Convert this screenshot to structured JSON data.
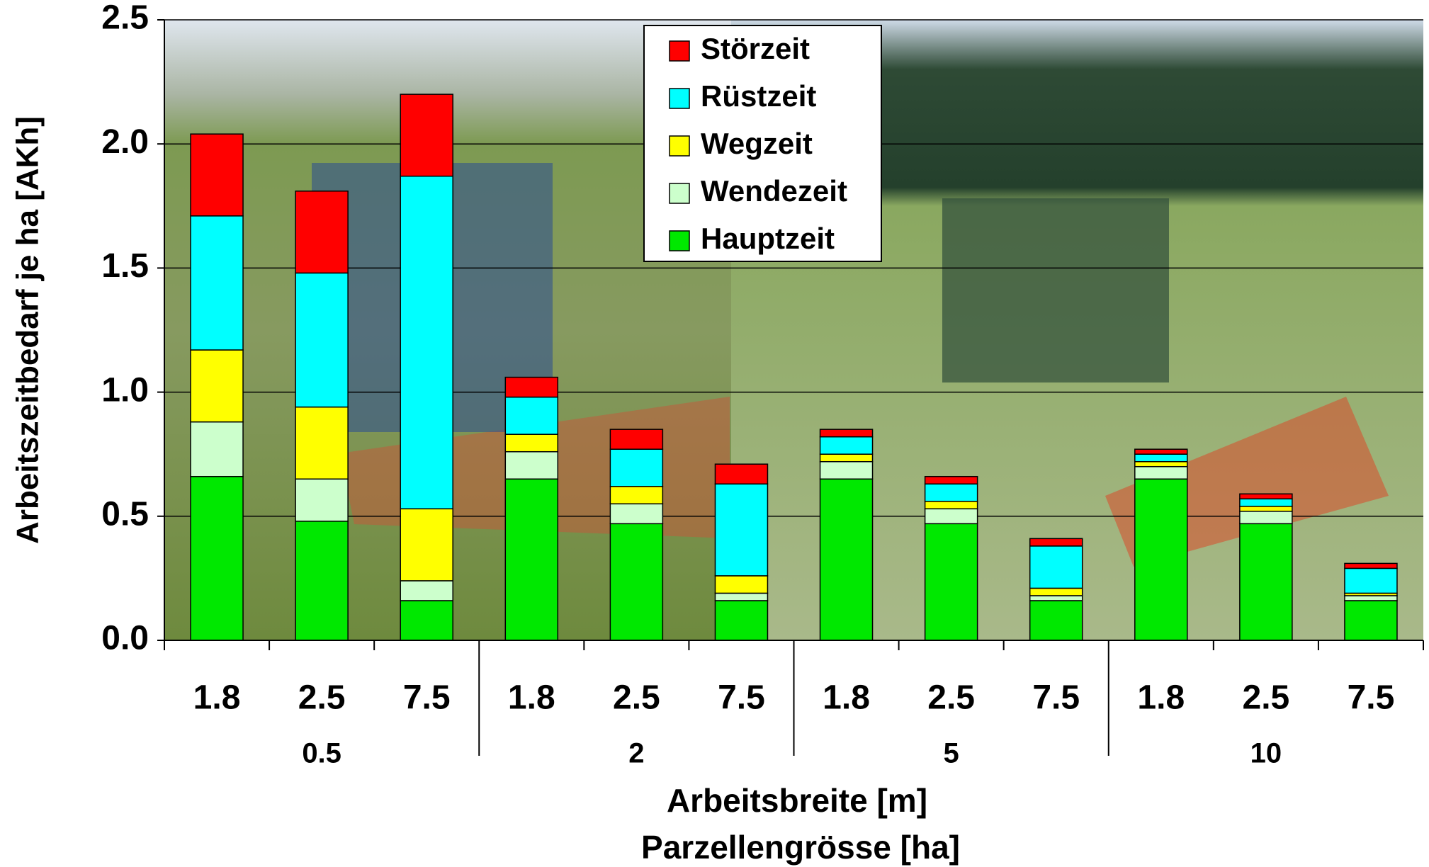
{
  "chart_data": {
    "type": "stacked_bar",
    "xlabel": "Arbeitsbreite [m]",
    "xlabel2": "Parzellengrösse [ha]",
    "ylabel": "Arbeitszeitbedarf je ha [AKh]",
    "categories": [
      "1.8",
      "2.5",
      "7.5",
      "1.8",
      "2.5",
      "7.5",
      "1.8",
      "2.5",
      "7.5",
      "1.8",
      "2.5",
      "7.5"
    ],
    "groups": [
      "0.5",
      "2",
      "5",
      "10"
    ],
    "series": [
      {
        "name": "Hauptzeit",
        "color": "#00e800",
        "values": [
          0.66,
          0.48,
          0.16,
          0.65,
          0.47,
          0.16,
          0.65,
          0.47,
          0.16,
          0.65,
          0.47,
          0.16
        ]
      },
      {
        "name": "Wendezeit",
        "color": "#ccffcc",
        "values": [
          0.22,
          0.17,
          0.08,
          0.11,
          0.08,
          0.03,
          0.07,
          0.06,
          0.02,
          0.05,
          0.05,
          0.02
        ]
      },
      {
        "name": "Wegzeit",
        "color": "#ffff00",
        "values": [
          0.29,
          0.29,
          0.29,
          0.07,
          0.07,
          0.07,
          0.03,
          0.03,
          0.03,
          0.02,
          0.02,
          0.01
        ]
      },
      {
        "name": "Rüstzeit",
        "color": "#00ffff",
        "values": [
          0.54,
          0.54,
          1.34,
          0.15,
          0.15,
          0.37,
          0.07,
          0.07,
          0.17,
          0.03,
          0.03,
          0.1
        ]
      },
      {
        "name": "Störzeit",
        "color": "#ff0000",
        "values": [
          0.33,
          0.33,
          0.33,
          0.08,
          0.08,
          0.08,
          0.03,
          0.03,
          0.03,
          0.02,
          0.02,
          0.02
        ]
      }
    ],
    "ylim": [
      0,
      2.5
    ],
    "yticks": [
      {
        "value": 0,
        "label": "0.0"
      },
      0.5,
      {
        "value": 1,
        "label": "1.0"
      },
      1.5,
      {
        "value": 2,
        "label": "2.0"
      },
      2.5
    ],
    "grid": true,
    "legend": "top"
  }
}
